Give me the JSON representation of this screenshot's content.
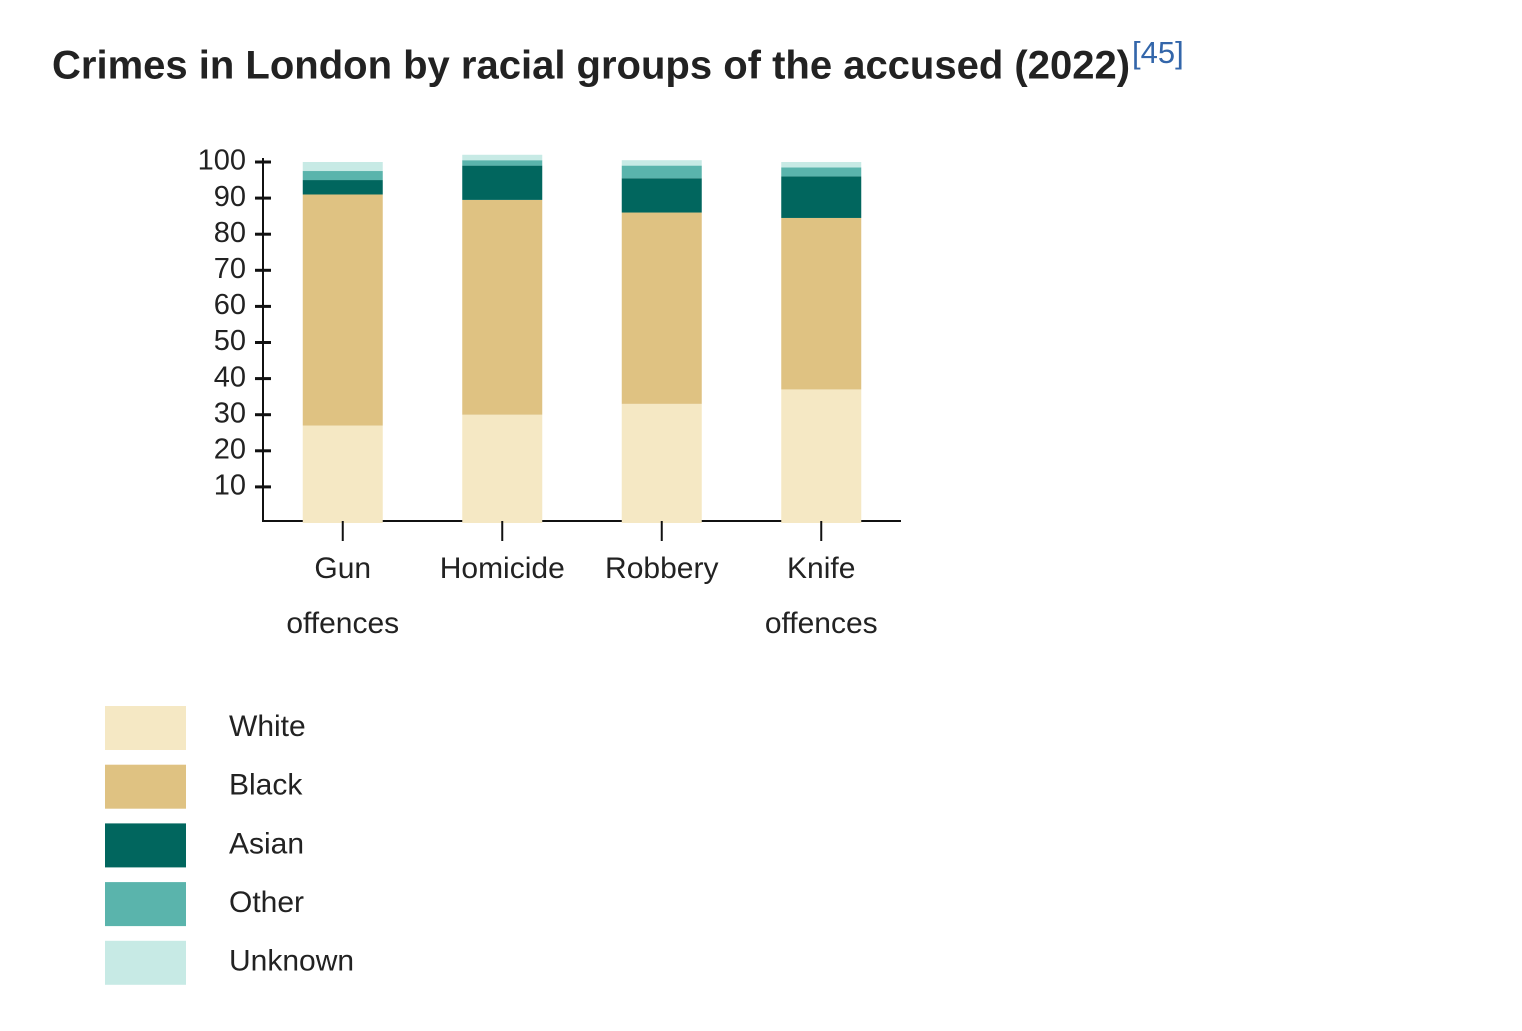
{
  "chart_data": {
    "type": "stacked_bar",
    "title": "Crimes in London by racial groups of the accused (2022)",
    "title_reference": "[45]",
    "categories": [
      "Gun offences",
      "Homicide",
      "Robbery",
      "Knife offences"
    ],
    "series": [
      {
        "name": "White",
        "color": "#f5e8c4",
        "values": [
          27,
          30,
          33,
          37
        ]
      },
      {
        "name": "Black",
        "color": "#dfc282",
        "values": [
          64,
          59.5,
          53,
          47.5
        ]
      },
      {
        "name": "Asian",
        "color": "#01665e",
        "values": [
          4,
          9.5,
          9.5,
          11.5
        ]
      },
      {
        "name": "Other",
        "color": "#5ab4ac",
        "values": [
          2.5,
          1.5,
          3.5,
          2.5
        ]
      },
      {
        "name": "Unknown",
        "color": "#c7eae5",
        "values": [
          2.5,
          1.5,
          1.5,
          1.5
        ]
      }
    ],
    "ylim": [
      0,
      100
    ],
    "yticks": [
      10,
      20,
      30,
      40,
      50,
      60,
      70,
      80,
      90,
      100
    ]
  }
}
